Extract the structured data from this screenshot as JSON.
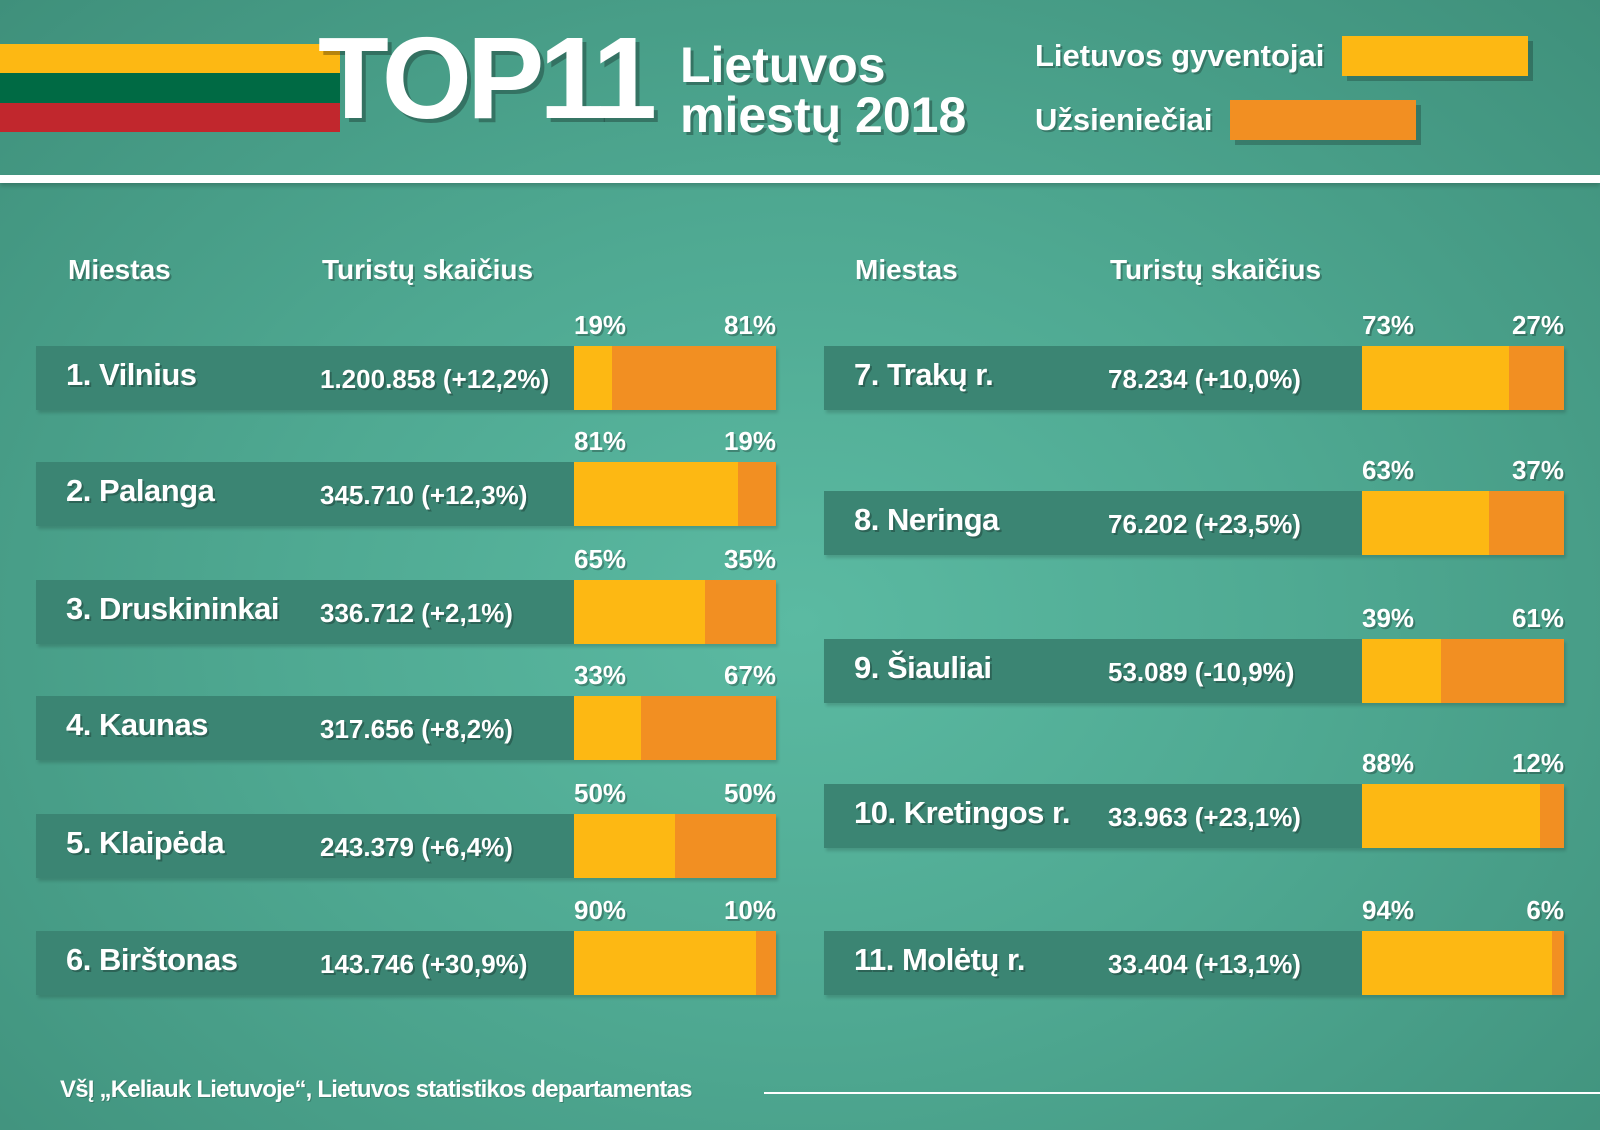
{
  "colors": {
    "flag_yellow": "#fdb813",
    "flag_green": "#006a44",
    "flag_red": "#c1272d",
    "local": "#fdb813",
    "foreign": "#f28f22",
    "row_bg": "#3b8573"
  },
  "header": {
    "title_big": "TOP11",
    "title_line1": "Lietuvos",
    "title_line2": "miestų 2018"
  },
  "legend": {
    "local_label": "Lietuvos gyventojai",
    "foreign_label": "Užsieniečiai"
  },
  "columns": {
    "city": "Miestas",
    "tourists": "Turistų skaičius"
  },
  "footer": {
    "source": "VšĮ „Keliauk Lietuvoje“, Lietuvos statistikos departamentas"
  },
  "chart_data": {
    "type": "bar",
    "subtype": "stacked-100-percent-horizontal",
    "series": [
      {
        "name": "Lietuvos gyventojai",
        "values": [
          19,
          81,
          65,
          33,
          50,
          90,
          73,
          63,
          39,
          88,
          94
        ]
      },
      {
        "name": "Užsieniečiai",
        "values": [
          81,
          19,
          35,
          67,
          50,
          10,
          27,
          37,
          61,
          12,
          6
        ]
      }
    ],
    "rows": [
      {
        "city": "1. Vilnius",
        "count": "1.200.858 (+12,2%)",
        "local": 19,
        "foreign": 81
      },
      {
        "city": "2. Palanga",
        "count": "345.710 (+12,3%)",
        "local": 81,
        "foreign": 19
      },
      {
        "city": "3. Druskininkai",
        "count": "336.712 (+2,1%)",
        "local": 65,
        "foreign": 35
      },
      {
        "city": "4. Kaunas",
        "count": "317.656 (+8,2%)",
        "local": 33,
        "foreign": 67
      },
      {
        "city": "5. Klaipėda",
        "count": "243.379 (+6,4%)",
        "local": 50,
        "foreign": 50
      },
      {
        "city": "6. Birštonas",
        "count": "143.746 (+30,9%)",
        "local": 90,
        "foreign": 10
      },
      {
        "city": "7. Trakų r.",
        "count": "78.234 (+10,0%)",
        "local": 73,
        "foreign": 27
      },
      {
        "city": "8. Neringa",
        "count": "76.202 (+23,5%)",
        "local": 63,
        "foreign": 37
      },
      {
        "city": "9. Šiauliai",
        "count": "53.089 (-10,9%)",
        "local": 39,
        "foreign": 61
      },
      {
        "city": "10. Kretingos r.",
        "count": "33.963 (+23,1%)",
        "local": 88,
        "foreign": 12
      },
      {
        "city": "11. Molėtų r.",
        "count": "33.404 (+13,1%)",
        "local": 94,
        "foreign": 6
      }
    ],
    "unit": "%"
  }
}
